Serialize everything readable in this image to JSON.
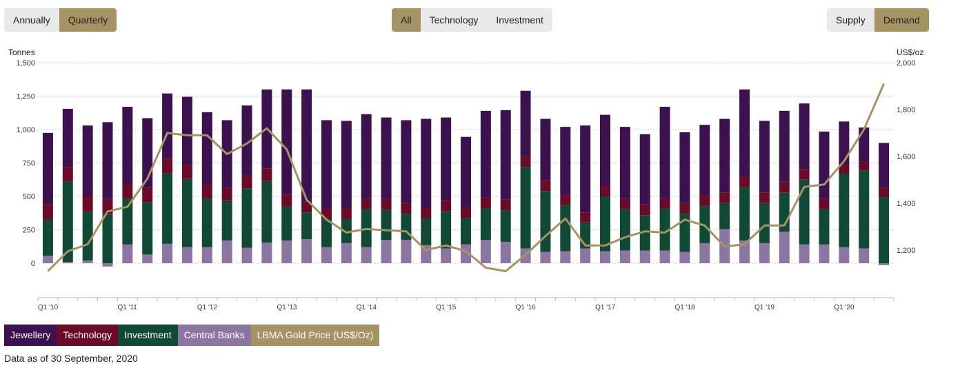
{
  "controls": {
    "period": [
      {
        "label": "Annually",
        "active": false
      },
      {
        "label": "Quarterly",
        "active": true
      }
    ],
    "sector": [
      {
        "label": "All",
        "active": true
      },
      {
        "label": "Technology",
        "active": false
      },
      {
        "label": "Investment",
        "active": false
      }
    ],
    "side": [
      {
        "label": "Supply",
        "active": false
      },
      {
        "label": "Demand",
        "active": true
      }
    ]
  },
  "colors": {
    "jewellery": "#3b1150",
    "technology": "#6b0a27",
    "investment": "#104a35",
    "central_banks": "#8a76a0",
    "gold_price": "#a69364",
    "active_button": "#a69364",
    "inactive_button": "#e9e9e9"
  },
  "legend": [
    {
      "label": "Jewellery",
      "color": "#3b1150"
    },
    {
      "label": "Technology",
      "color": "#6b0a27"
    },
    {
      "label": "Investment",
      "color": "#104a35"
    },
    {
      "label": "Central Banks",
      "color": "#8a76a0"
    },
    {
      "label": "LBMA Gold Price (US$/Oz)",
      "color": "#a69364"
    }
  ],
  "footnote": "Data as of 30 September, 2020",
  "chart_data": {
    "type": "bar",
    "stacked": true,
    "left_axis_title": "Tonnes",
    "right_axis_title": "US$/oz",
    "left_ticks": [
      "1,500",
      "1,250",
      "1,000",
      "750",
      "500",
      "250",
      "0"
    ],
    "right_ticks": [
      "2,000",
      "1,800",
      "1,600",
      "1,400",
      "1,200"
    ],
    "ylim": [
      -250,
      1500
    ],
    "y2lim": [
      1000,
      2000
    ],
    "grid": true,
    "x_tick_labels": [
      "Q1 '10",
      "Q1 '11",
      "Q1 '12",
      "Q1 '13",
      "Q1 '14",
      "Q1 '15",
      "Q1 '16",
      "Q1 '17",
      "Q1 '18",
      "Q1 '19",
      "Q1 '20"
    ],
    "categories": [
      "Q1 2010",
      "Q2 2010",
      "Q3 2010",
      "Q4 2010",
      "Q1 2011",
      "Q2 2011",
      "Q3 2011",
      "Q4 2011",
      "Q1 2012",
      "Q2 2012",
      "Q3 2012",
      "Q4 2012",
      "Q1 2013",
      "Q2 2013",
      "Q3 2013",
      "Q4 2013",
      "Q1 2014",
      "Q2 2014",
      "Q3 2014",
      "Q4 2014",
      "Q1 2015",
      "Q2 2015",
      "Q3 2015",
      "Q4 2015",
      "Q1 2016",
      "Q2 2016",
      "Q3 2016",
      "Q4 2016",
      "Q1 2017",
      "Q2 2017",
      "Q3 2017",
      "Q4 2017",
      "Q1 2018",
      "Q2 2018",
      "Q3 2018",
      "Q4 2018",
      "Q1 2019",
      "Q2 2019",
      "Q3 2019",
      "Q4 2019",
      "Q1 2020",
      "Q2 2020",
      "Q3 2020"
    ],
    "series": [
      {
        "name": "Central Banks",
        "key": "central_banks",
        "color": "#8a76a0",
        "values": [
          55,
          10,
          20,
          -25,
          140,
          65,
          145,
          120,
          120,
          170,
          115,
          155,
          170,
          180,
          120,
          150,
          120,
          175,
          175,
          135,
          110,
          140,
          175,
          160,
          110,
          85,
          90,
          110,
          90,
          95,
          95,
          95,
          85,
          150,
          255,
          170,
          150,
          235,
          140,
          140,
          120,
          110,
          -15
        ]
      },
      {
        "name": "Investment",
        "key": "investment",
        "color": "#104a35",
        "values": [
          270,
          600,
          365,
          365,
          345,
          390,
          530,
          510,
          365,
          300,
          445,
          460,
          255,
          200,
          210,
          180,
          285,
          225,
          195,
          200,
          280,
          200,
          235,
          235,
          610,
          455,
          345,
          195,
          410,
          310,
          265,
          315,
          285,
          280,
          195,
          400,
          300,
          295,
          485,
          265,
          550,
          585,
          495
        ]
      },
      {
        "name": "Technology",
        "key": "technology",
        "color": "#6b0a27",
        "values": [
          115,
          110,
          115,
          115,
          105,
          110,
          105,
          105,
          100,
          95,
          95,
          95,
          90,
          80,
          80,
          80,
          80,
          80,
          80,
          80,
          80,
          80,
          80,
          80,
          80,
          80,
          75,
          75,
          80,
          80,
          80,
          80,
          80,
          80,
          80,
          80,
          80,
          80,
          80,
          80,
          70,
          65,
          70
        ]
      },
      {
        "name": "Jewellery",
        "key": "jewellery",
        "color": "#3b1150",
        "values": [
          535,
          435,
          530,
          575,
          580,
          520,
          490,
          510,
          545,
          505,
          525,
          590,
          785,
          840,
          660,
          655,
          630,
          610,
          620,
          665,
          620,
          525,
          650,
          670,
          490,
          460,
          510,
          650,
          530,
          535,
          525,
          680,
          530,
          525,
          550,
          650,
          535,
          530,
          490,
          500,
          320,
          255,
          335
        ]
      }
    ],
    "line": {
      "name": "LBMA Gold Price (US$/Oz)",
      "key": "gold_price",
      "color": "#a69364",
      "values": [
        1110,
        1195,
        1225,
        1365,
        1385,
        1505,
        1700,
        1690,
        1690,
        1610,
        1655,
        1720,
        1630,
        1415,
        1330,
        1275,
        1290,
        1285,
        1280,
        1200,
        1220,
        1195,
        1125,
        1110,
        1180,
        1260,
        1335,
        1220,
        1220,
        1255,
        1280,
        1275,
        1330,
        1305,
        1215,
        1225,
        1305,
        1305,
        1470,
        1480,
        1580,
        1715,
        1910
      ]
    }
  }
}
